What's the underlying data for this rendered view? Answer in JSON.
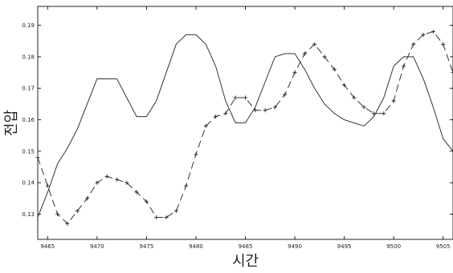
{
  "chart_data": {
    "type": "line",
    "title": "",
    "xlabel": "시간",
    "ylabel": "전압",
    "xlim": [
      9464,
      9506
    ],
    "ylim": [
      0.122,
      0.196
    ],
    "x_ticks": [
      9465,
      9470,
      9475,
      9480,
      9485,
      9490,
      9495,
      9500,
      9505
    ],
    "y_ticks": [
      0.13,
      0.14,
      0.15,
      0.16,
      0.17,
      0.18,
      0.19
    ],
    "grid": false,
    "legend": "none",
    "series": [
      {
        "style": "solid",
        "color": "#333333",
        "marker": "none",
        "x": [
          9464,
          9465,
          9466,
          9467,
          9468,
          9469,
          9470,
          9471,
          9472,
          9473,
          9474,
          9475,
          9476,
          9477,
          9478,
          9479,
          9480,
          9481,
          9482,
          9483,
          9484,
          9485,
          9486,
          9487,
          9488,
          9489,
          9490,
          9491,
          9492,
          9493,
          9494,
          9495,
          9496,
          9497,
          9498,
          9499,
          9500,
          9501,
          9502,
          9503,
          9504,
          9505,
          9506
        ],
        "y": [
          0.129,
          0.137,
          0.146,
          0.151,
          0.157,
          0.165,
          0.173,
          0.173,
          0.173,
          0.167,
          0.161,
          0.161,
          0.166,
          0.175,
          0.184,
          0.187,
          0.187,
          0.184,
          0.177,
          0.166,
          0.159,
          0.159,
          0.164,
          0.172,
          0.18,
          0.181,
          0.181,
          0.176,
          0.17,
          0.165,
          0.162,
          0.16,
          0.159,
          0.158,
          0.161,
          0.167,
          0.177,
          0.18,
          0.18,
          0.173,
          0.164,
          0.154,
          0.15
        ]
      },
      {
        "style": "dashed",
        "color": "#333333",
        "marker": "plus",
        "x": [
          9464,
          9465,
          9466,
          9467,
          9468,
          9469,
          9470,
          9471,
          9472,
          9473,
          9474,
          9475,
          9476,
          9477,
          9478,
          9479,
          9480,
          9481,
          9482,
          9483,
          9484,
          9485,
          9486,
          9487,
          9488,
          9489,
          9490,
          9491,
          9492,
          9493,
          9494,
          9495,
          9496,
          9497,
          9498,
          9499,
          9500,
          9501,
          9502,
          9503,
          9504,
          9505,
          9506
        ],
        "y": [
          0.148,
          0.139,
          0.13,
          0.127,
          0.131,
          0.135,
          0.14,
          0.142,
          0.141,
          0.14,
          0.137,
          0.134,
          0.129,
          0.129,
          0.131,
          0.139,
          0.149,
          0.158,
          0.161,
          0.162,
          0.167,
          0.167,
          0.163,
          0.163,
          0.164,
          0.168,
          0.175,
          0.181,
          0.184,
          0.18,
          0.176,
          0.171,
          0.167,
          0.164,
          0.162,
          0.162,
          0.166,
          0.177,
          0.184,
          0.187,
          0.188,
          0.184,
          0.175
        ]
      }
    ]
  }
}
